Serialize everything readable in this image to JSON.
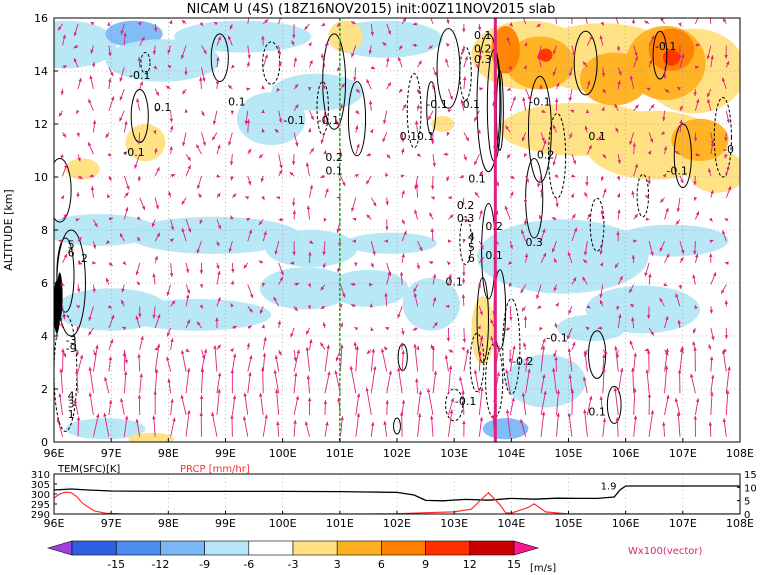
{
  "chart_data": [
    {
      "type": "heatmap",
      "title": "NICAM U (4S) (18Z16NOV2015) init:00Z11NOV2015 slab",
      "xlabel": "",
      "ylabel": "ALTITUDE [km]",
      "xlim": [
        96,
        108
      ],
      "ylim": [
        0,
        16
      ],
      "x_ticks": [
        "96E",
        "97E",
        "98E",
        "99E",
        "100E",
        "101E",
        "102E",
        "103E",
        "104E",
        "105E",
        "106E",
        "107E",
        "108E"
      ],
      "y_ticks": [
        "0",
        "2",
        "4",
        "6",
        "8",
        "10",
        "12",
        "14",
        "16"
      ],
      "grid": true,
      "contour_labels": [
        {
          "x": 96.3,
          "y": 7.3,
          "text": "5"
        },
        {
          "x": 96.3,
          "y": 7.0,
          "text": "6"
        },
        {
          "x": 96.5,
          "y": 6.8,
          "text": ".2"
        },
        {
          "x": 96.3,
          "y": 3.7,
          "text": "-3"
        },
        {
          "x": 96.3,
          "y": 3.4,
          "text": "-9"
        },
        {
          "x": 96.3,
          "y": 1.6,
          "text": "4"
        },
        {
          "x": 96.3,
          "y": 1.3,
          "text": "3"
        },
        {
          "x": 96.3,
          "y": 0.9,
          "text": "1"
        },
        {
          "x": 97.4,
          "y": 10.8,
          "text": "-0.1"
        },
        {
          "x": 97.5,
          "y": 13.7,
          "text": "-0.1"
        },
        {
          "x": 97.9,
          "y": 12.5,
          "text": "0.1"
        },
        {
          "x": 99.2,
          "y": 12.7,
          "text": "0.1"
        },
        {
          "x": 100.2,
          "y": 12.0,
          "text": "-0.1"
        },
        {
          "x": 100.8,
          "y": 12.0,
          "text": "-0.1"
        },
        {
          "x": 100.9,
          "y": 10.6,
          "text": "0.2"
        },
        {
          "x": 100.9,
          "y": 10.1,
          "text": "0.1"
        },
        {
          "x": 102.2,
          "y": 11.4,
          "text": "0.1"
        },
        {
          "x": 102.5,
          "y": 11.4,
          "text": "0.1"
        },
        {
          "x": 102.7,
          "y": 12.6,
          "text": "-0.1"
        },
        {
          "x": 103.3,
          "y": 12.6,
          "text": "0.1"
        },
        {
          "x": 103.5,
          "y": 15.2,
          "text": "0.1"
        },
        {
          "x": 103.5,
          "y": 14.7,
          "text": "0.2"
        },
        {
          "x": 103.5,
          "y": 14.3,
          "text": "0.3"
        },
        {
          "x": 103.4,
          "y": 9.8,
          "text": "0.1"
        },
        {
          "x": 103.2,
          "y": 8.8,
          "text": "0.2"
        },
        {
          "x": 103.2,
          "y": 8.3,
          "text": "0.3"
        },
        {
          "x": 103.3,
          "y": 7.6,
          "text": "4"
        },
        {
          "x": 103.3,
          "y": 7.2,
          "text": "5"
        },
        {
          "x": 103.3,
          "y": 6.8,
          "text": "6"
        },
        {
          "x": 103.0,
          "y": 5.9,
          "text": "0.1"
        },
        {
          "x": 103.7,
          "y": 8.0,
          "text": "0.2"
        },
        {
          "x": 103.7,
          "y": 6.9,
          "text": "0.1"
        },
        {
          "x": 104.4,
          "y": 7.4,
          "text": "0.3"
        },
        {
          "x": 104.5,
          "y": 12.7,
          "text": "-0.1"
        },
        {
          "x": 104.6,
          "y": 10.7,
          "text": "0.2"
        },
        {
          "x": 104.8,
          "y": 3.8,
          "text": "-0.1"
        },
        {
          "x": 104.2,
          "y": 2.9,
          "text": "-0.2"
        },
        {
          "x": 103.2,
          "y": 1.4,
          "text": "-0.1"
        },
        {
          "x": 105.5,
          "y": 1.0,
          "text": "0.1"
        },
        {
          "x": 105.5,
          "y": 11.4,
          "text": "0.1"
        },
        {
          "x": 106.7,
          "y": 14.8,
          "text": "-0.1"
        },
        {
          "x": 106.9,
          "y": 10.1,
          "text": "-0.1"
        },
        {
          "x": 107.8,
          "y": 10.9,
          "text": "-0"
        }
      ]
    },
    {
      "type": "line",
      "title": "",
      "xlim": [
        96,
        108
      ],
      "x_ticks": [
        "96E",
        "97E",
        "98E",
        "99E",
        "100E",
        "101E",
        "102E",
        "103E",
        "104E",
        "105E",
        "106E",
        "107E",
        "108E"
      ],
      "left_axis": {
        "label": "TEM(SFC)[K]",
        "ylim": [
          290,
          310
        ],
        "ticks": [
          "310",
          "305",
          "300",
          "295",
          "290"
        ]
      },
      "right_axis": {
        "label": "PRCP [mm/hr]",
        "ylim": [
          0,
          15
        ],
        "ticks": [
          "15",
          "10",
          "5",
          "0"
        ]
      },
      "series": [
        {
          "name": "TEM(SFC)[K]",
          "color": "#000000",
          "axis": "left",
          "x": [
            96.0,
            96.3,
            96.6,
            97.0,
            98.0,
            99.0,
            100.0,
            101.0,
            101.5,
            102.0,
            102.3,
            102.5,
            102.8,
            103.2,
            103.6,
            104.0,
            104.4,
            104.8,
            105.2,
            105.5,
            105.8,
            105.9,
            106.0,
            106.2,
            107.0,
            108.0
          ],
          "y": [
            302.0,
            302.5,
            302.0,
            301.5,
            301.3,
            301.3,
            301.3,
            301.2,
            301.0,
            300.8,
            299.5,
            296.8,
            296.6,
            297.3,
            296.9,
            297.8,
            297.4,
            297.9,
            297.8,
            297.8,
            298.5,
            302.0,
            304.0,
            304.0,
            304.0,
            304.0
          ]
        },
        {
          "name": "PRCP [mm/hr]",
          "color": "#ff3030",
          "axis": "right",
          "x": [
            96.0,
            96.1,
            96.2,
            96.3,
            96.4,
            96.5,
            96.7,
            96.9,
            97.2,
            101.5,
            102.0,
            102.5,
            103.0,
            103.3,
            103.5,
            103.6,
            103.8,
            103.9,
            104.0,
            104.3,
            104.4,
            104.6,
            105.0,
            108.0
          ],
          "y": [
            6.0,
            7.5,
            8.2,
            8.0,
            6.5,
            4.0,
            1.2,
            0.3,
            0.0,
            0.0,
            0.1,
            0.5,
            0.8,
            1.8,
            6.0,
            8.0,
            3.5,
            0.5,
            0.3,
            2.5,
            3.8,
            0.8,
            0.0,
            0.0
          ]
        }
      ],
      "annotations": [
        {
          "text": "1.9",
          "x": 105.7
        }
      ]
    }
  ],
  "colorbar": {
    "ticks": [
      "-15",
      "-12",
      "-9",
      "-6",
      "-3",
      "3",
      "6",
      "9",
      "12",
      "15"
    ],
    "unit": "[m/s]",
    "colors": [
      "#9b3fe0",
      "#3060e0",
      "#4a8cf0",
      "#7ab8f5",
      "#b4e6f5",
      "#ffffff",
      "#ffe080",
      "#ffb020",
      "#ff8000",
      "#ff3000",
      "#c80000",
      "#ff1493"
    ]
  },
  "vector_label": "Wx100(vector)",
  "colors": {
    "vector": "#e0207a",
    "green_line": "#20b020",
    "light_blue": "#b4e6f5",
    "mid_blue": "#7ab8f5",
    "light_yellow": "#ffe080",
    "orange": "#ffb020",
    "deep_orange": "#ff8000",
    "red": "#ff3000"
  }
}
